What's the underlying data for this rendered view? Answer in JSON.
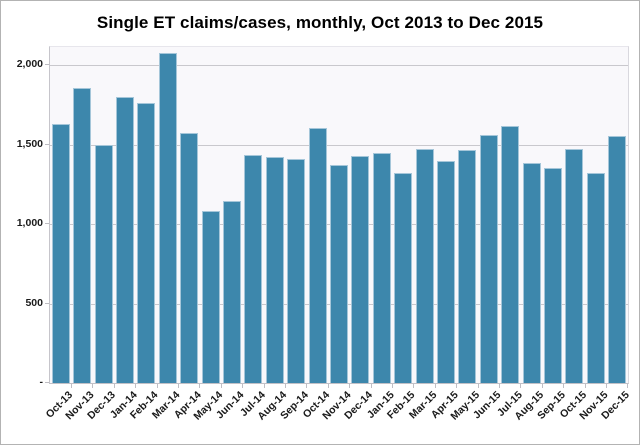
{
  "chart_data": {
    "type": "bar",
    "title": "Single ET claims/cases, monthly, Oct 2013 to Dec 2015",
    "categories": [
      "Oct-13",
      "Nov-13",
      "Dec-13",
      "Jan-14",
      "Feb-14",
      "Mar-14",
      "Apr-14",
      "May-14",
      "Jun-14",
      "Jul-14",
      "Aug-14",
      "Sep-14",
      "Oct-14",
      "Nov-14",
      "Dec-14",
      "Jan-15",
      "Feb-15",
      "Mar-15",
      "Apr-15",
      "May-15",
      "Jun-15",
      "Jul-15",
      "Aug-15",
      "Sep-15",
      "Oct-15",
      "Nov-15",
      "Dec-15"
    ],
    "values": [
      1630,
      1860,
      1500,
      1800,
      1760,
      2080,
      1575,
      1080,
      1145,
      1435,
      1425,
      1410,
      1605,
      1370,
      1430,
      1445,
      1325,
      1470,
      1400,
      1465,
      1560,
      1615,
      1385,
      1355,
      1475,
      1320,
      1555
    ],
    "xlabel": "",
    "ylabel": "",
    "ylim": [
      0,
      2115
    ],
    "yticks": [
      {
        "value": 0,
        "label": "-"
      },
      {
        "value": 500,
        "label": "500"
      },
      {
        "value": 1000,
        "label": "1,000"
      },
      {
        "value": 1500,
        "label": "1,500"
      },
      {
        "value": 2000,
        "label": "2,000"
      }
    ],
    "grid": true,
    "legend": false,
    "bar_color": "#3d87ac",
    "bar_border_color": "#a5c6d9",
    "plot_bg": "#f9f8fb",
    "grid_color": "#c9c8cd"
  }
}
